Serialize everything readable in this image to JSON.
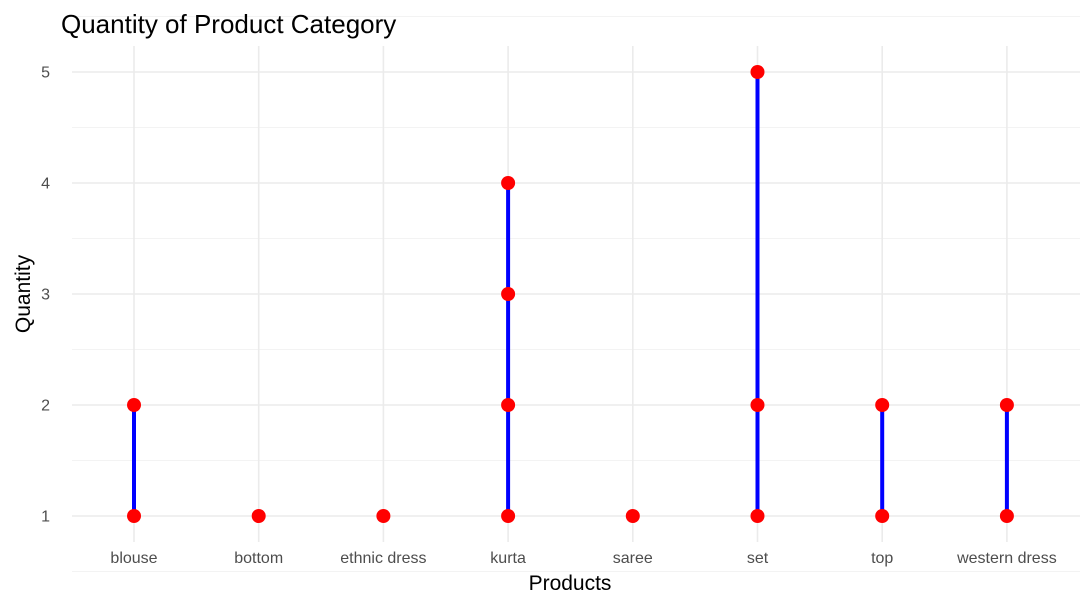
{
  "chart_data": {
    "type": "lollipop",
    "title": "Quantity of Product Category",
    "xlabel": "Products",
    "ylabel": "Quantity",
    "categories": [
      "blouse",
      "bottom",
      "ethnic dress",
      "kurta",
      "saree",
      "set",
      "top",
      "western dress"
    ],
    "points": [
      {
        "category": "blouse",
        "values": [
          1,
          2
        ]
      },
      {
        "category": "bottom",
        "values": [
          1
        ]
      },
      {
        "category": "ethnic dress",
        "values": [
          1
        ]
      },
      {
        "category": "kurta",
        "values": [
          1,
          2,
          3,
          4
        ]
      },
      {
        "category": "saree",
        "values": [
          1
        ]
      },
      {
        "category": "set",
        "values": [
          1,
          2,
          5
        ]
      },
      {
        "category": "top",
        "values": [
          1,
          2
        ]
      },
      {
        "category": "western dress",
        "values": [
          1,
          2
        ]
      }
    ],
    "yticks": [
      1,
      2,
      3,
      4,
      5
    ],
    "ylim": [
      1,
      5
    ],
    "grid": true,
    "legend": "none",
    "segment_color": "#0000ff",
    "point_color": "#ff0000"
  }
}
